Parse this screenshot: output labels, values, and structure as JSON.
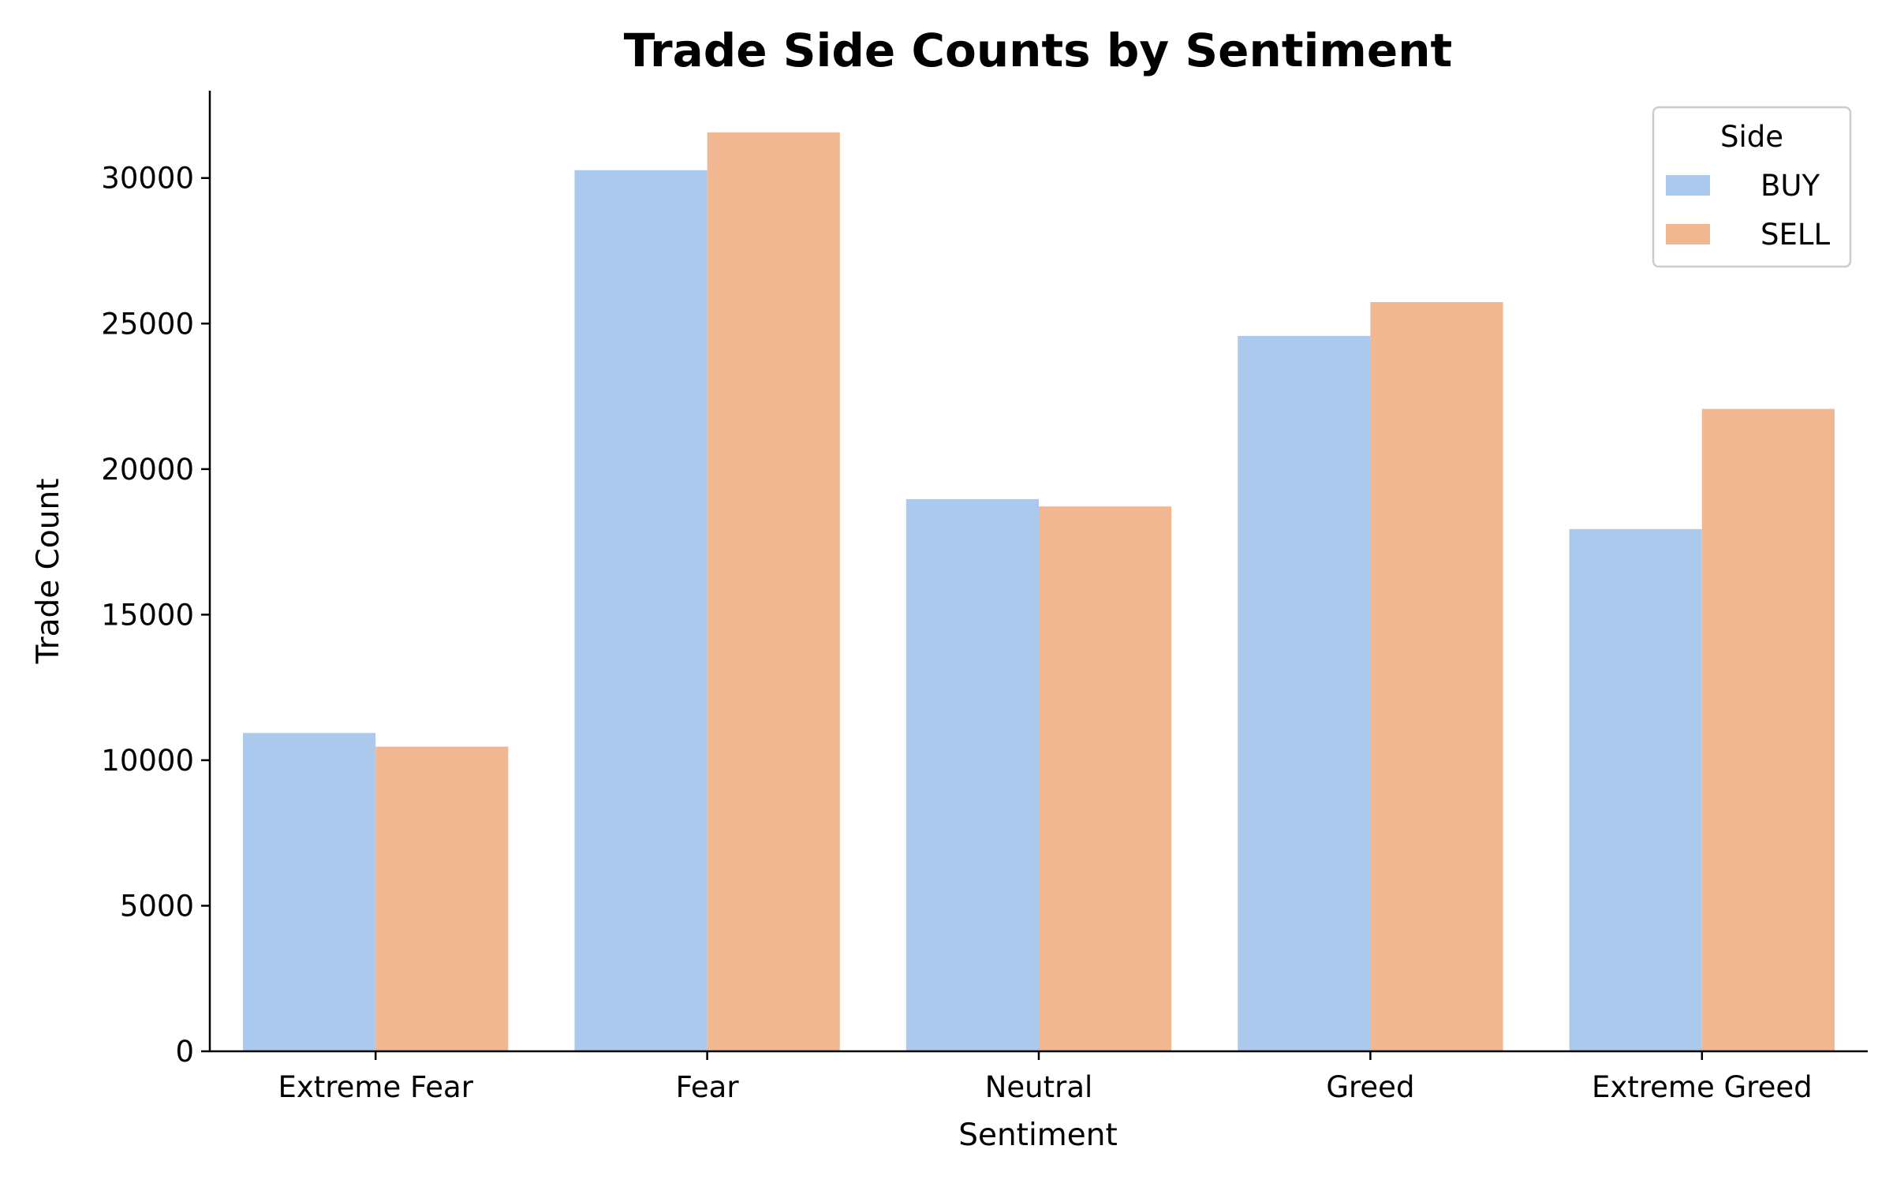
{
  "chart_data": {
    "type": "bar",
    "title": "Trade Side Counts by Sentiment",
    "xlabel": "Sentiment",
    "ylabel": "Trade Count",
    "categories": [
      "Extreme Fear",
      "Fear",
      "Neutral",
      "Greed",
      "Extreme Greed"
    ],
    "series": [
      {
        "name": "BUY",
        "values": [
          10935,
          30270,
          18969,
          24576,
          17940
        ],
        "color": "#abc9ed"
      },
      {
        "name": "SELL",
        "values": [
          10465,
          31567,
          18717,
          25738,
          22069
        ],
        "color": "#f0b791"
      }
    ],
    "ylim": [
      0,
      33000
    ],
    "yticks": [
      0,
      5000,
      10000,
      15000,
      20000,
      25000,
      30000
    ],
    "grid": false,
    "legend": {
      "title": "Side",
      "placement": "top-right"
    }
  }
}
